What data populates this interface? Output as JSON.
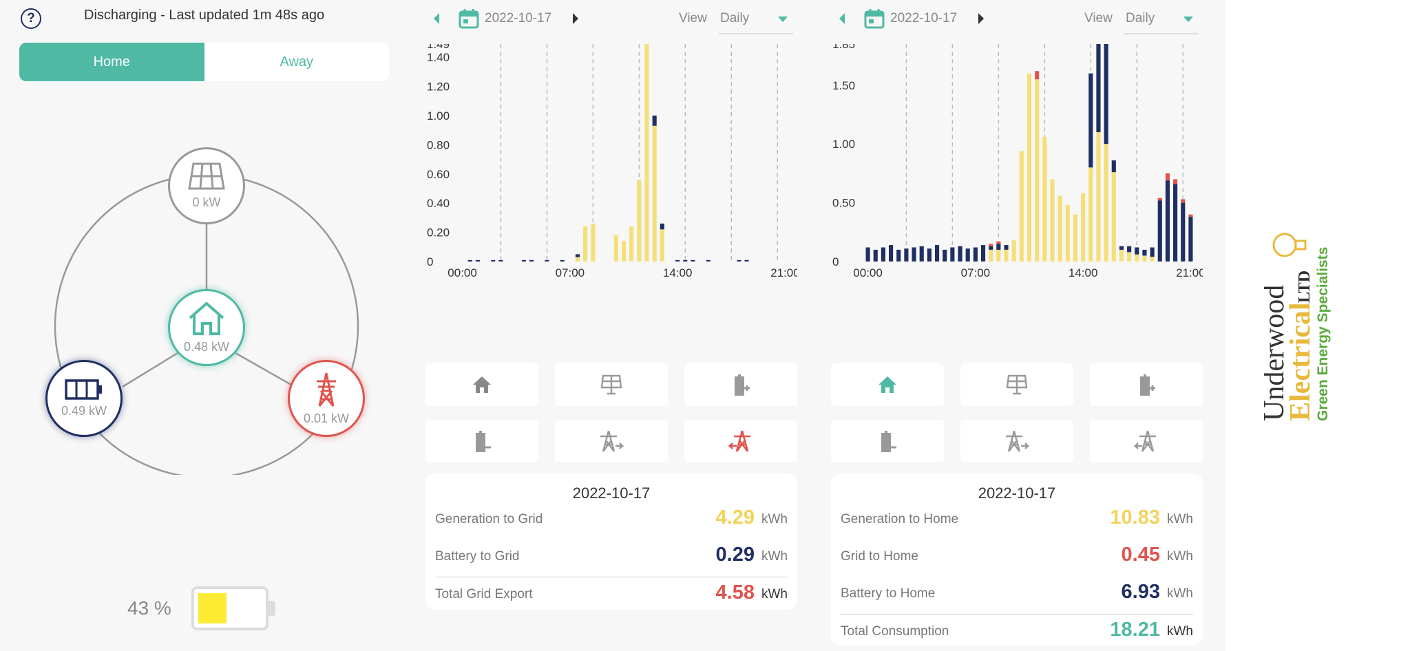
{
  "status": {
    "text": "Discharging - Last updated 1m 48s ago"
  },
  "mode_toggle": {
    "home": "Home",
    "away": "Away"
  },
  "flow": {
    "solar": "0 kW",
    "home": "0.48 kW",
    "battery": "0.49 kW",
    "grid": "0.01 kW"
  },
  "battery_soc": {
    "percent_text": "43 %",
    "level": 0.43
  },
  "colors": {
    "accent": "#4fb9a4",
    "navy": "#1f2f63",
    "grid_red": "#e0544f",
    "solar_yellow": "#f5df7a"
  },
  "panel1": {
    "date": "2022-10-17",
    "view_label": "View",
    "view_value": "Daily",
    "summary": {
      "title": "2022-10-17",
      "rows": [
        {
          "label": "Generation to Grid",
          "value": "4.29",
          "unit": "kWh",
          "color": "#f2d35a"
        },
        {
          "label": "Battery to Grid",
          "value": "0.29",
          "unit": "kWh",
          "color": "#1f2f63"
        },
        {
          "label": "Total Grid Export",
          "value": "4.58",
          "unit": "kWh",
          "color": "#e0544f"
        }
      ]
    },
    "buttons": [
      "home-icon",
      "solar-panel-icon",
      "battery-charge-icon",
      "battery-discharge-icon",
      "grid-export-icon",
      "grid-import-icon"
    ]
  },
  "panel2": {
    "date": "2022-10-17",
    "view_label": "View",
    "view_value": "Daily",
    "summary": {
      "title": "2022-10-17",
      "rows": [
        {
          "label": "Generation to Home",
          "value": "10.83",
          "unit": "kWh",
          "color": "#f2d35a"
        },
        {
          "label": "Grid to Home",
          "value": "0.45",
          "unit": "kWh",
          "color": "#e0544f"
        },
        {
          "label": "Battery to Home",
          "value": "6.93",
          "unit": "kWh",
          "color": "#1f2f63"
        },
        {
          "label": "Total Consumption",
          "value": "18.21",
          "unit": "kWh",
          "color": "#4fb9a4"
        }
      ]
    },
    "buttons": [
      "home-icon",
      "solar-panel-icon",
      "battery-charge-icon",
      "battery-discharge-icon",
      "grid-export-icon",
      "grid-import-icon"
    ]
  },
  "logo": {
    "line1": "Underwood",
    "line2": "Electrical",
    "ltd": "LTD",
    "tagline": "Green Energy Specialists"
  },
  "chart_data": [
    {
      "type": "bar",
      "stacked": true,
      "x": [
        "00:00",
        "00:30",
        "01:00",
        "01:30",
        "02:00",
        "02:30",
        "03:00",
        "03:30",
        "04:00",
        "04:30",
        "05:00",
        "05:30",
        "06:00",
        "06:30",
        "07:00",
        "07:30",
        "08:00",
        "08:30",
        "09:00",
        "09:30",
        "10:00",
        "10:30",
        "11:00",
        "11:30",
        "12:00",
        "12:30",
        "13:00",
        "13:30",
        "14:00",
        "14:30",
        "15:00",
        "15:30",
        "16:00",
        "16:30",
        "17:00",
        "17:30",
        "18:00",
        "18:30",
        "19:00",
        "19:30",
        "20:00",
        "20:30",
        "21:00"
      ],
      "x_ticks": [
        "00:00",
        "07:00",
        "14:00",
        "21:00"
      ],
      "y_ticks": [
        "0",
        "0.20",
        "0.40",
        "0.60",
        "0.80",
        "1.00",
        "1.20",
        "1.40",
        "1.49"
      ],
      "ylim": [
        0,
        1.49
      ],
      "series": [
        {
          "color": "#f5df7a",
          "values": [
            0,
            0,
            0,
            0,
            0,
            0,
            0,
            0,
            0,
            0,
            0,
            0,
            0,
            0,
            0,
            0.03,
            0.24,
            0.26,
            0,
            0,
            0.18,
            0.14,
            0.24,
            0.56,
            1.49,
            0.93,
            0.22,
            0,
            0,
            0,
            0,
            0,
            0,
            0,
            0,
            0,
            0,
            0,
            0,
            0,
            0,
            0,
            0
          ]
        },
        {
          "color": "#1f2f63",
          "values": [
            0,
            0.01,
            0.01,
            0,
            0.01,
            0.01,
            0,
            0,
            0.01,
            0.01,
            0,
            0.01,
            0,
            0.01,
            0,
            0.02,
            0,
            0,
            0,
            0,
            0,
            0,
            0,
            0,
            0,
            0.07,
            0.04,
            0,
            0.01,
            0.01,
            0.01,
            0,
            0.01,
            0,
            0,
            0,
            0.01,
            0.01,
            0,
            0,
            0,
            0,
            0
          ]
        },
        {
          "color": "#e0544f",
          "values": [
            0,
            0,
            0,
            0,
            0,
            0,
            0,
            0,
            0,
            0,
            0,
            0,
            0,
            0,
            0,
            0,
            0,
            0,
            0,
            0,
            0,
            0,
            0,
            0,
            0,
            0,
            0,
            0,
            0,
            0,
            0,
            0,
            0,
            0,
            0,
            0,
            0,
            0,
            0,
            0,
            0,
            0,
            0
          ]
        }
      ]
    },
    {
      "type": "bar",
      "stacked": true,
      "x": [
        "00:00",
        "00:30",
        "01:00",
        "01:30",
        "02:00",
        "02:30",
        "03:00",
        "03:30",
        "04:00",
        "04:30",
        "05:00",
        "05:30",
        "06:00",
        "06:30",
        "07:00",
        "07:30",
        "08:00",
        "08:30",
        "09:00",
        "09:30",
        "10:00",
        "10:30",
        "11:00",
        "11:30",
        "12:00",
        "12:30",
        "13:00",
        "13:30",
        "14:00",
        "14:30",
        "15:00",
        "15:30",
        "16:00",
        "16:30",
        "17:00",
        "17:30",
        "18:00",
        "18:30",
        "19:00",
        "19:30",
        "20:00",
        "20:30",
        "21:00"
      ],
      "x_ticks": [
        "00:00",
        "07:00",
        "14:00",
        "21:00"
      ],
      "y_ticks": [
        "0",
        "0.50",
        "1.00",
        "1.50",
        "1.85"
      ],
      "ylim": [
        0,
        1.85
      ],
      "series": [
        {
          "color": "#f5df7a",
          "values": [
            0,
            0,
            0,
            0,
            0,
            0,
            0,
            0,
            0,
            0,
            0,
            0,
            0,
            0,
            0,
            0,
            0.1,
            0.1,
            0.1,
            0.18,
            0.94,
            1.6,
            1.55,
            1.06,
            0.7,
            0.56,
            0.48,
            0.4,
            0.58,
            0.8,
            1.1,
            1.0,
            0.76,
            0.1,
            0.08,
            0.06,
            0.05,
            0.04,
            0,
            0,
            0,
            0,
            0
          ]
        },
        {
          "color": "#1f2f63",
          "values": [
            0.12,
            0.1,
            0.12,
            0.14,
            0.1,
            0.11,
            0.12,
            0.13,
            0.11,
            0.14,
            0.1,
            0.12,
            0.13,
            0.11,
            0.12,
            0.14,
            0.03,
            0.05,
            0.04,
            0,
            0,
            0,
            0,
            0,
            0,
            0,
            0,
            0,
            0,
            0.8,
            0.75,
            0.85,
            0.1,
            0.03,
            0.05,
            0.06,
            0.05,
            0.08,
            0.52,
            0.69,
            0.66,
            0.5,
            0.38
          ]
        },
        {
          "color": "#e0544f",
          "values": [
            0,
            0,
            0,
            0,
            0,
            0,
            0,
            0,
            0,
            0,
            0,
            0,
            0,
            0,
            0,
            0,
            0.02,
            0.02,
            0,
            0,
            0,
            0,
            0.07,
            0,
            0,
            0,
            0,
            0,
            0,
            0,
            0.02,
            0.02,
            0,
            0,
            0,
            0,
            0,
            0,
            0.02,
            0.06,
            0.04,
            0.03,
            0.02
          ]
        }
      ]
    }
  ]
}
